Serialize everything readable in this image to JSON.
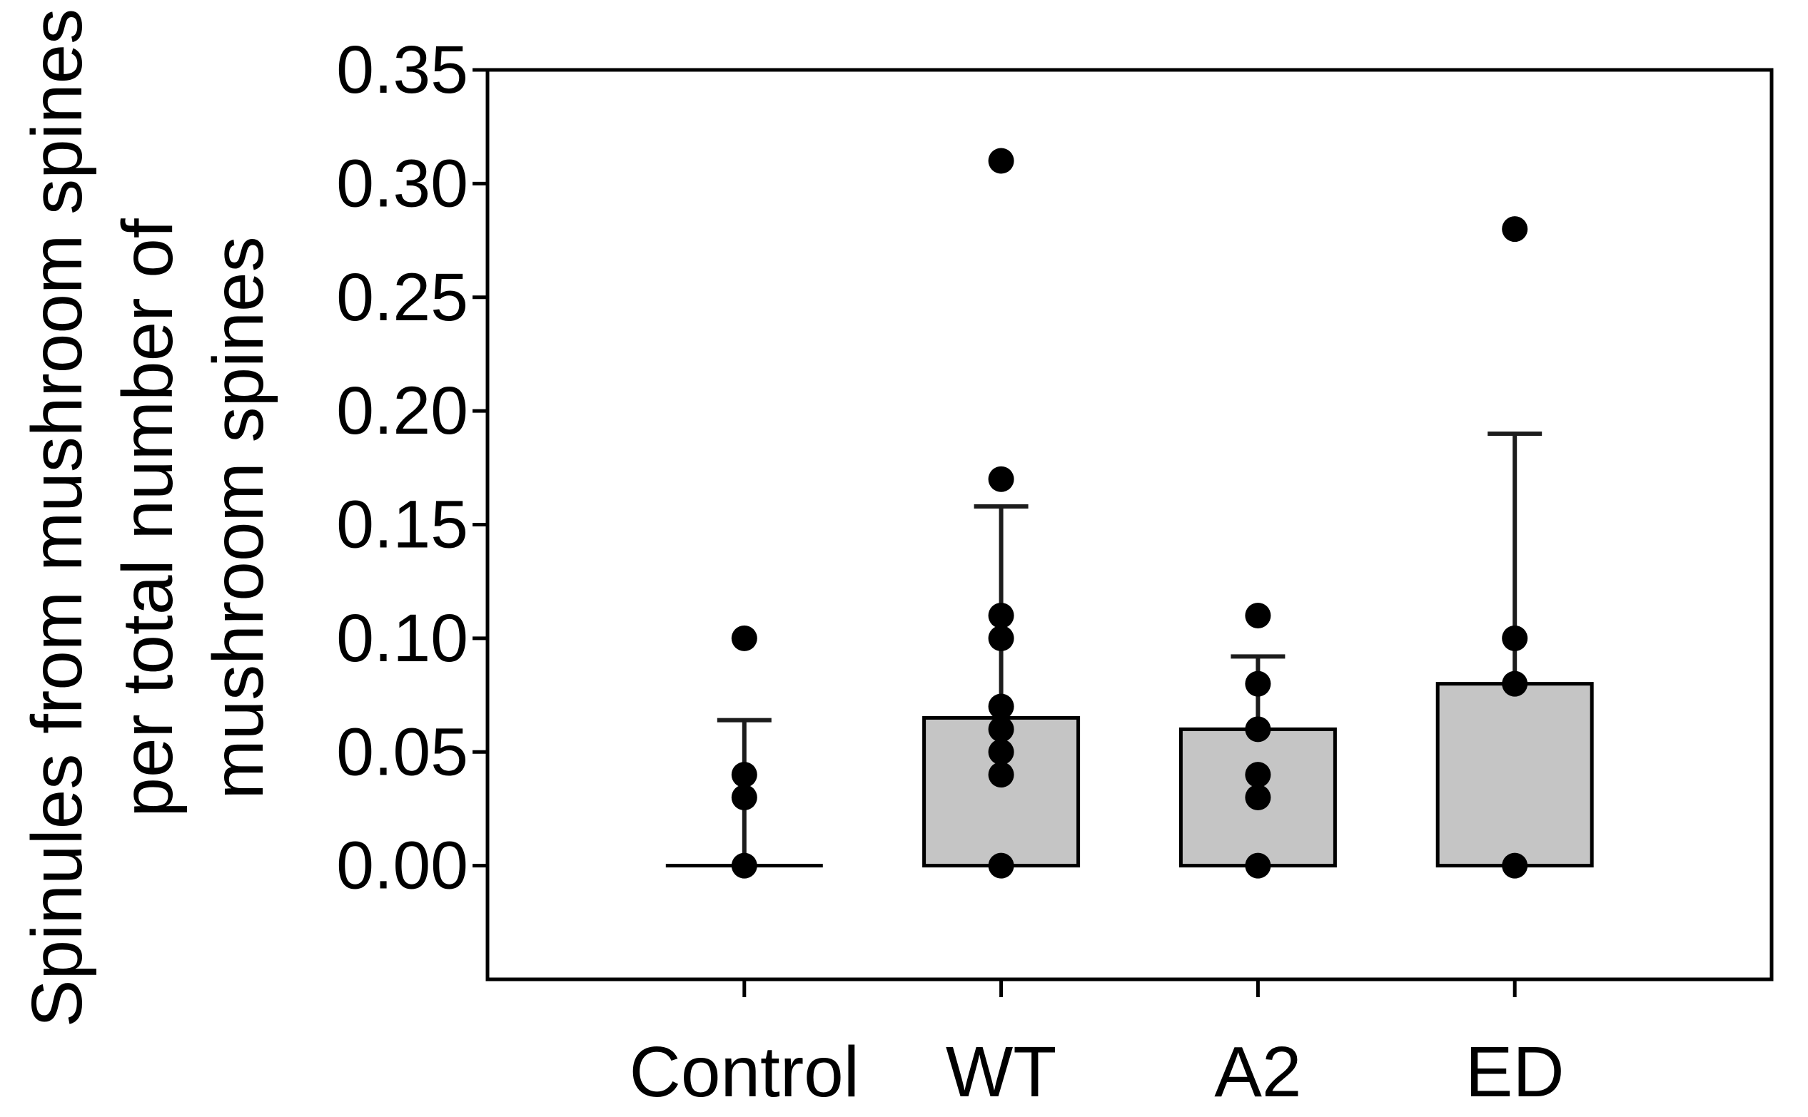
{
  "chart_data": {
    "type": "bar",
    "title": "",
    "xlabel": "",
    "ylabel_lines": [
      "Spinules from mushroom spines",
      "per total number of",
      "mushroom spines"
    ],
    "categories": [
      "Control",
      "WT",
      "A2",
      "ED"
    ],
    "series": [
      {
        "name": "bar-mean",
        "values": [
          0.0,
          0.065,
          0.06,
          0.08
        ]
      },
      {
        "name": "error-bar-upper",
        "values": [
          0.064,
          0.158,
          0.092,
          0.19
        ]
      }
    ],
    "points": [
      [
        0.1,
        0.04,
        0.03,
        0.0
      ],
      [
        0.31,
        0.17,
        0.11,
        0.1,
        0.07,
        0.06,
        0.05,
        0.04,
        0.0
      ],
      [
        0.11,
        0.08,
        0.06,
        0.04,
        0.03,
        0.0
      ],
      [
        0.28,
        0.1,
        0.08,
        0.0
      ]
    ],
    "yticks": {
      "values": [
        0.0,
        0.05,
        0.1,
        0.15,
        0.2,
        0.25,
        0.3,
        0.35
      ],
      "labels": [
        "0.00",
        "0.05",
        "0.10",
        "0.15",
        "0.20",
        "0.25",
        "0.30",
        "0.35"
      ]
    },
    "ylim": [
      -0.05,
      0.35
    ],
    "grid": false,
    "legend_position": "none",
    "colors": {
      "bar_fill": "#c5c5c5",
      "bar_stroke": "#000000",
      "error_bar": "#1c1c1c",
      "dot": "#000000",
      "axis": "#000000",
      "text": "#000000",
      "background": "#ffffff"
    }
  }
}
